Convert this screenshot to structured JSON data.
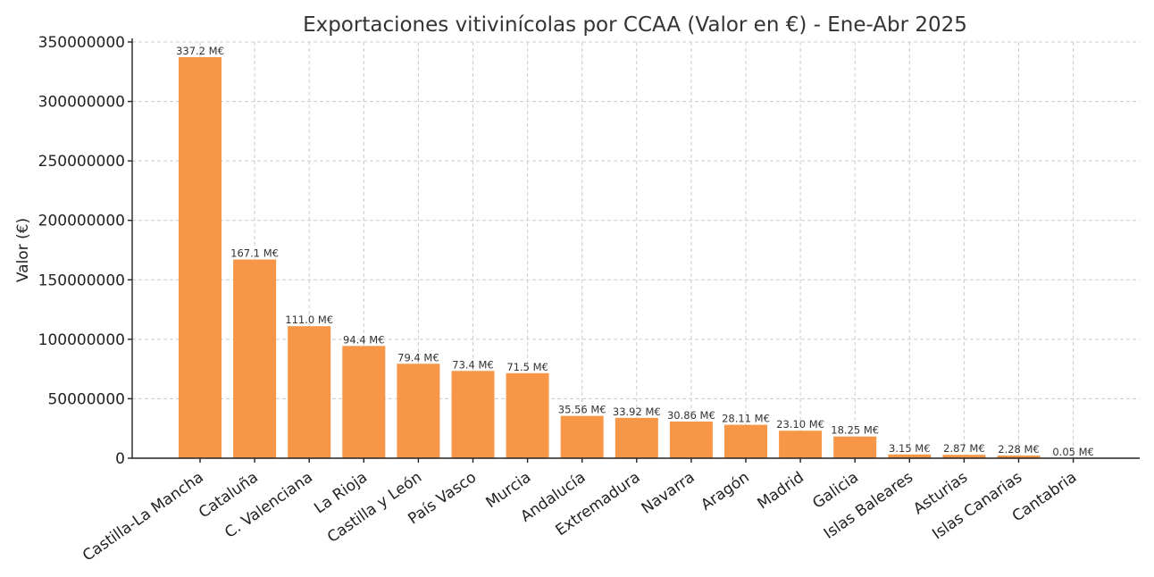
{
  "chart_data": {
    "type": "bar",
    "title": "Exportaciones vitivinícolas por CCAA (Valor en €) - Ene-Abr 2025",
    "xlabel": "",
    "ylabel": "Valor (€)",
    "ylim": [
      0,
      350000000
    ],
    "yticks": [
      0,
      50000000,
      100000000,
      150000000,
      200000000,
      250000000,
      300000000,
      350000000
    ],
    "grid": true,
    "bar_color": "#f79646",
    "categories": [
      "Castilla-La Mancha",
      "Cataluña",
      "C. Valenciana",
      "La Rioja",
      "Castilla y León",
      "País Vasco",
      "Murcia",
      "Andalucía",
      "Extremadura",
      "Navarra",
      "Aragón",
      "Madrid",
      "Galicia",
      "Islas Baleares",
      "Asturias",
      "Islas Canarias",
      "Cantabria"
    ],
    "values": [
      337200000,
      167100000,
      111000000,
      94400000,
      79400000,
      73400000,
      71500000,
      35560000,
      33920000,
      30860000,
      28110000,
      23100000,
      18250000,
      3150000,
      2870000,
      2280000,
      50000
    ],
    "data_labels": [
      "337.2 M€",
      "167.1 M€",
      "111.0 M€",
      "94.4 M€",
      "79.4 M€",
      "73.4 M€",
      "71.5 M€",
      "35.56 M€",
      "33.92 M€",
      "30.86 M€",
      "28.11 M€",
      "23.10 M€",
      "18.25 M€",
      "3.15 M€",
      "2.87 M€",
      "2.28 M€",
      "0.05 M€"
    ]
  }
}
